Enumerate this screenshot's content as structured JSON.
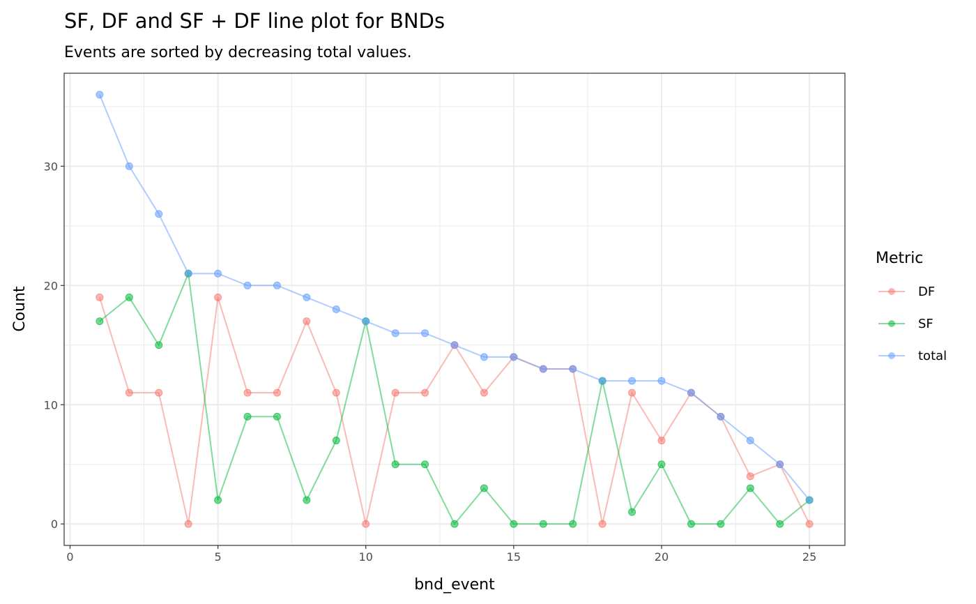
{
  "chart_data": {
    "type": "line",
    "title": "SF, DF and SF + DF  line plot for BNDs",
    "subtitle": "Events are sorted by decreasing total values.",
    "xlabel": "bnd_event",
    "ylabel": "Count",
    "xlim": [
      -0.2,
      26.2
    ],
    "ylim": [
      -1.8,
      37.8
    ],
    "xticks": [
      0,
      5,
      10,
      15,
      20,
      25
    ],
    "yticks": [
      0,
      10,
      20,
      30
    ],
    "grid": true,
    "legend": {
      "title": "Metric",
      "placement": "right"
    },
    "x": [
      1,
      2,
      3,
      4,
      5,
      6,
      7,
      8,
      9,
      10,
      11,
      12,
      13,
      14,
      15,
      16,
      17,
      18,
      19,
      20,
      21,
      22,
      23,
      24,
      25
    ],
    "series": [
      {
        "name": "DF",
        "color": "#F8766D",
        "values": [
          19,
          11,
          11,
          0,
          19,
          11,
          11,
          17,
          11,
          0,
          11,
          11,
          15,
          11,
          14,
          13,
          13,
          0,
          11,
          7,
          11,
          9,
          4,
          5,
          0
        ]
      },
      {
        "name": "SF",
        "color": "#00BA38",
        "values": [
          17,
          19,
          15,
          21,
          2,
          9,
          9,
          2,
          7,
          17,
          5,
          5,
          0,
          3,
          0,
          0,
          0,
          12,
          1,
          5,
          0,
          0,
          3,
          0,
          2
        ]
      },
      {
        "name": "total",
        "color": "#619CFF",
        "values": [
          36,
          30,
          26,
          21,
          21,
          20,
          20,
          19,
          18,
          17,
          16,
          16,
          15,
          14,
          14,
          13,
          13,
          12,
          12,
          12,
          11,
          9,
          7,
          5,
          2
        ]
      }
    ]
  }
}
